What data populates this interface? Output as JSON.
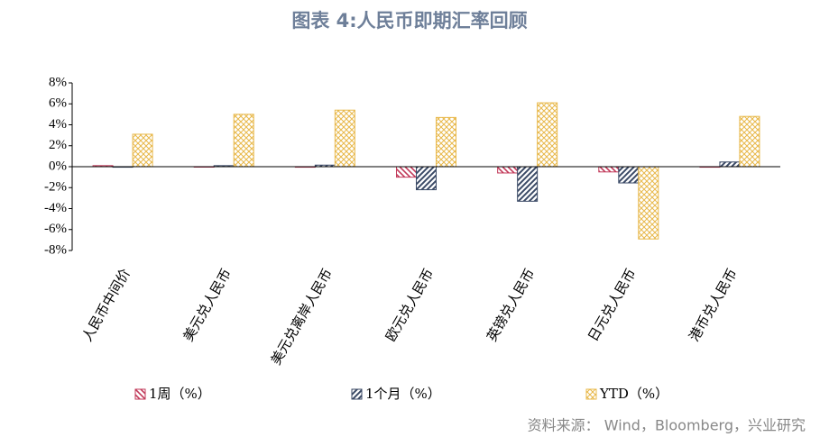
{
  "chart_data": {
    "type": "bar",
    "title": "图表 4:人民币即期汇率回顾",
    "categories": [
      "人民币中间价",
      "美元兑人民币",
      "美元兑离岸人民币",
      "欧元兑人民币",
      "英镑兑人民币",
      "日元兑人民币",
      "港币兑人民币"
    ],
    "series": [
      {
        "name": "1周（%）",
        "color": "#c23a5a",
        "values": [
          0.1,
          0.0,
          -0.05,
          -1.0,
          -0.6,
          -0.5,
          -0.05
        ]
      },
      {
        "name": "1个月（%）",
        "color": "#3b4a66",
        "values": [
          -0.05,
          0.1,
          0.15,
          -2.2,
          -3.3,
          -1.55,
          0.45
        ]
      },
      {
        "name": "YTD（%）",
        "color": "#e8b84a",
        "values": [
          3.1,
          5.0,
          5.4,
          4.7,
          6.1,
          -6.9,
          4.8
        ]
      }
    ],
    "ylim": [
      -8,
      8
    ],
    "yticks": [
      {
        "value": -8,
        "label": "-8%"
      },
      {
        "value": -6,
        "label": "-6%"
      },
      {
        "value": -4,
        "label": "-4%"
      },
      {
        "value": -2,
        "label": "-2%"
      },
      {
        "value": 0,
        "label": "0%"
      },
      {
        "value": 2,
        "label": "2%"
      },
      {
        "value": 4,
        "label": "4%"
      },
      {
        "value": 6,
        "label": "6%"
      },
      {
        "value": 8,
        "label": "8%"
      }
    ],
    "grid": false,
    "legend": "bottom",
    "source": "资料来源： Wind，Bloomberg，兴业研究"
  }
}
